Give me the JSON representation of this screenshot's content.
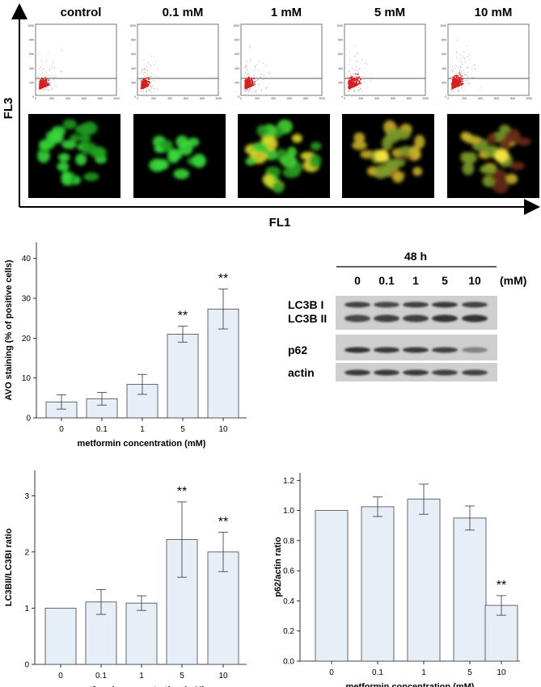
{
  "panel_a": {
    "conditions": [
      "control",
      "0.1 mM",
      "1 mM",
      "5 mM",
      "10 mM"
    ],
    "y_axis_label": "FL3",
    "x_axis_label": "FL1",
    "scatter_ticks_y": [
      "1000",
      "800",
      "600",
      "400",
      "200",
      "0"
    ],
    "scatter_ticks_x": [
      "0",
      "200",
      "400",
      "600",
      "800",
      "1000"
    ],
    "colors": {
      "dots": "#d42020",
      "grid_dots": "#888888",
      "cells_green": "#2fd02f",
      "cells_yellow": "#d8d820"
    }
  },
  "western": {
    "time_label": "48 h",
    "lanes": [
      "0",
      "0.1",
      "1",
      "5",
      "10"
    ],
    "unit": "(mM)",
    "rows": [
      "LC3B I",
      "LC3B II",
      "p62",
      "actin"
    ]
  },
  "chart_data": [
    {
      "type": "bar",
      "categories": [
        "0",
        "0.1",
        "1",
        "5",
        "10"
      ],
      "values": [
        4.0,
        4.8,
        8.4,
        21.0,
        27.3
      ],
      "errors": [
        1.8,
        1.6,
        2.5,
        2.0,
        5.0
      ],
      "annotations": [
        "",
        "",
        "",
        "**",
        "**"
      ],
      "xlabel": "metformin concentration (mM)",
      "ylabel": "AVO staining (% of positive cells)",
      "ylim": [
        0,
        44
      ],
      "yticks": [
        "0",
        "10",
        "20",
        "30",
        "40"
      ],
      "bar_color": "#e6eef8"
    },
    {
      "type": "bar",
      "categories": [
        "0",
        "0.1",
        "1",
        "5",
        "10"
      ],
      "values": [
        1.0,
        1.11,
        1.09,
        2.22,
        2.0
      ],
      "errors": [
        0.0,
        0.22,
        0.13,
        0.67,
        0.35
      ],
      "annotations": [
        "",
        "",
        "",
        "**",
        "**"
      ],
      "xlabel": "metformin concentration (mM)",
      "ylabel": "LC3BII/LC3BI ratio",
      "ylim": [
        0,
        3.45
      ],
      "yticks": [
        "0",
        "1",
        "2",
        "3"
      ],
      "bar_color": "#e6eef8"
    },
    {
      "type": "bar",
      "categories": [
        "0",
        "0.1",
        "1",
        "5",
        "10"
      ],
      "values": [
        1.0,
        1.025,
        1.075,
        0.95,
        0.37
      ],
      "errors": [
        0.0,
        0.065,
        0.1,
        0.08,
        0.065
      ],
      "annotations": [
        "",
        "",
        "",
        "",
        "**"
      ],
      "xlabel": "metformin concentration (mM)",
      "ylabel": "p62/actin ratio",
      "ylim": [
        0,
        1.25
      ],
      "yticks": [
        "0.0",
        "0.2",
        "0.4",
        "0.6",
        "0.8",
        "1.0",
        "1.2"
      ],
      "bar_color": "#e6eef8"
    }
  ]
}
